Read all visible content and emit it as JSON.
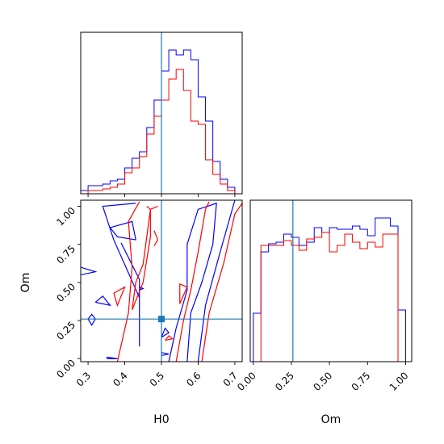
{
  "chart_data": {
    "type": "corner",
    "parameters": [
      "H0",
      "Om"
    ],
    "truth": {
      "H0": 0.5,
      "Om": 0.26
    },
    "colors": {
      "series_1": "#0000ff",
      "series_2": "#ff0000",
      "truth": "#1f77b4"
    },
    "panels": [
      {
        "id": "hist-H0",
        "type": "step-histogram",
        "xlim": [
          0.28,
          0.72
        ],
        "x_ticks": [
          0.3,
          0.4,
          0.5,
          0.6,
          0.7
        ],
        "ylim": [
          0,
          1.0
        ],
        "bin_edges": [
          0.28,
          0.3,
          0.32,
          0.34,
          0.36,
          0.38,
          0.4,
          0.42,
          0.44,
          0.46,
          0.48,
          0.5,
          0.52,
          0.54,
          0.56,
          0.58,
          0.6,
          0.62,
          0.64,
          0.66,
          0.68,
          0.7,
          0.72
        ],
        "series": [
          {
            "color": "blue",
            "values": [
              0.02,
              0.05,
              0.05,
              0.06,
              0.08,
              0.09,
              0.16,
              0.22,
              0.26,
              0.41,
              0.58,
              0.76,
              0.89,
              0.86,
              0.89,
              0.83,
              0.6,
              0.45,
              0.2,
              0.09,
              0.04,
              0.0
            ]
          },
          {
            "color": "red",
            "values": [
              0.0,
              0.02,
              0.02,
              0.03,
              0.04,
              0.06,
              0.13,
              0.16,
              0.23,
              0.37,
              0.48,
              0.58,
              0.71,
              0.77,
              0.64,
              0.45,
              0.43,
              0.21,
              0.12,
              0.06,
              0.02,
              0.0
            ]
          }
        ]
      },
      {
        "id": "contour-H0-Om",
        "type": "contour",
        "xlim": [
          0.28,
          0.72
        ],
        "ylim": [
          -0.02,
          1.04
        ],
        "x_ticks": [
          0.3,
          0.4,
          0.5,
          0.6,
          0.7
        ],
        "y_ticks": [
          0.0,
          0.25,
          0.5,
          0.75,
          1.0
        ],
        "y_tick_labels": [
          "0.00",
          "0.25",
          "0.50",
          "0.75",
          "1.00"
        ],
        "series": [
          {
            "color": "blue",
            "contours": [
              [
                [
                  0.39,
                  0.76
                ],
                [
                  0.44,
                  0.52
                ],
                [
                  0.44,
                  0.08
                ],
                [
                  0.44,
                  0.4
                ],
                [
                  0.37,
                  0.78
                ],
                [
                  0.34,
                  1.0
                ],
                [
                  0.43,
                  1.02
                ]
              ],
              [
                [
                  0.36,
                  0.86
                ],
                [
                  0.42,
                  0.9
                ],
                [
                  0.43,
                  0.78
                ],
                [
                  0.38,
                  0.8
                ],
                [
                  0.36,
                  0.86
                ]
              ],
              [
                [
                  0.28,
                  0.6
                ],
                [
                  0.32,
                  0.57
                ],
                [
                  0.28,
                  0.55
                ]
              ],
              [
                [
                  0.32,
                  0.37
                ],
                [
                  0.36,
                  0.35
                ],
                [
                  0.34,
                  0.41
                ],
                [
                  0.32,
                  0.37
                ]
              ],
              [
                [
                  0.3,
                  0.26
                ],
                [
                  0.31,
                  0.22
                ],
                [
                  0.32,
                  0.26
                ],
                [
                  0.31,
                  0.29
                ],
                [
                  0.3,
                  0.26
                ]
              ],
              [
                [
                  0.35,
                  0.01
                ],
                [
                  0.38,
                  0.0
                ],
                [
                  0.35,
                  0.0
                ]
              ],
              [
                [
                  0.52,
                  -0.02
                ],
                [
                  0.54,
                  0.2
                ],
                [
                  0.57,
                  0.45
                ],
                [
                  0.57,
                  0.75
                ],
                [
                  0.6,
                  0.98
                ],
                [
                  0.65,
                  1.02
                ],
                [
                  0.64,
                  0.75
                ],
                [
                  0.61,
                  0.5
                ],
                [
                  0.58,
                  0.3
                ],
                [
                  0.57,
                  -0.02
                ]
              ],
              [
                [
                  0.6,
                  -0.02
                ],
                [
                  0.62,
                  0.35
                ],
                [
                  0.66,
                  0.7
                ],
                [
                  0.7,
                  1.04
                ]
              ],
              [
                [
                  0.5,
                  0.14
                ],
                [
                  0.52,
                  0.17
                ],
                [
                  0.51,
                  0.2
                ],
                [
                  0.5,
                  0.14
                ]
              ],
              [
                [
                  0.44,
                  0.47
                ],
                [
                  0.45,
                  0.46
                ],
                [
                  0.44,
                  0.45
                ]
              ],
              [
                [
                  0.5,
                  0.02
                ],
                [
                  0.52,
                  0.03
                ],
                [
                  0.5,
                  0.04
                ]
              ]
            ]
          },
          {
            "color": "red",
            "contours": [
              [
                [
                  0.38,
                  -0.02
                ],
                [
                  0.41,
                  0.3
                ],
                [
                  0.42,
                  0.6
                ],
                [
                  0.41,
                  0.9
                ],
                [
                  0.44,
                  1.03
                ]
              ],
              [
                [
                  0.42,
                  0.32
                ],
                [
                  0.43,
                  0.5
                ],
                [
                  0.45,
                  0.62
                ],
                [
                  0.47,
                  0.98
                ],
                [
                  0.47,
                  0.8
                ],
                [
                  0.45,
                  0.5
                ],
                [
                  0.42,
                  0.32
                ]
              ],
              [
                [
                  0.54,
                  -0.02
                ],
                [
                  0.56,
                  0.25
                ],
                [
                  0.58,
                  0.45
                ],
                [
                  0.6,
                  0.7
                ],
                [
                  0.62,
                  0.98
                ],
                [
                  0.63,
                  1.03
                ]
              ],
              [
                [
                  0.61,
                  -0.02
                ],
                [
                  0.63,
                  0.3
                ],
                [
                  0.67,
                  0.63
                ],
                [
                  0.7,
                  0.95
                ],
                [
                  0.72,
                  1.02
                ]
              ],
              [
                [
                  0.37,
                  0.43
                ],
                [
                  0.4,
                  0.47
                ],
                [
                  0.38,
                  0.35
                ],
                [
                  0.37,
                  0.43
                ]
              ],
              [
                [
                  0.55,
                  0.36
                ],
                [
                  0.57,
                  0.47
                ],
                [
                  0.55,
                  0.49
                ],
                [
                  0.55,
                  0.36
                ]
              ],
              [
                [
                  0.48,
                  0.84
                ],
                [
                  0.49,
                  0.78
                ],
                [
                  0.48,
                  0.74
                ]
              ],
              [
                [
                  0.51,
                  0.12
                ],
                [
                  0.53,
                  0.13
                ],
                [
                  0.52,
                  0.15
                ],
                [
                  0.51,
                  0.12
                ]
              ],
              [
                [
                  0.46,
                  1.0
                ],
                [
                  0.47,
                  0.98
                ],
                [
                  0.49,
                  1.0
                ]
              ]
            ]
          }
        ]
      },
      {
        "id": "hist-Om",
        "type": "step-histogram",
        "xlim": [
          -0.02,
          1.04
        ],
        "x_ticks": [
          0.0,
          0.25,
          0.5,
          0.75,
          1.0
        ],
        "x_tick_labels": [
          "0.00",
          "0.25",
          "0.50",
          "0.75",
          "1.00"
        ],
        "ylim": [
          0,
          1.0
        ],
        "bin_edges": [
          0.0,
          0.05,
          0.1,
          0.15,
          0.2,
          0.25,
          0.3,
          0.35,
          0.4,
          0.45,
          0.5,
          0.55,
          0.6,
          0.65,
          0.7,
          0.75,
          0.8,
          0.85,
          0.9,
          0.95,
          1.0
        ],
        "series": [
          {
            "color": "blue",
            "values": [
              0.3,
              0.68,
              0.73,
              0.74,
              0.79,
              0.77,
              0.72,
              0.74,
              0.83,
              0.8,
              0.83,
              0.82,
              0.82,
              0.84,
              0.82,
              0.78,
              0.89,
              0.89,
              0.84,
              0.32
            ]
          },
          {
            "color": "red",
            "values": [
              0.0,
              0.72,
              0.72,
              0.72,
              0.75,
              0.72,
              0.69,
              0.76,
              0.77,
              0.8,
              0.68,
              0.72,
              0.79,
              0.74,
              0.7,
              0.74,
              0.71,
              0.79,
              0.79,
              0.0
            ]
          }
        ]
      }
    ],
    "labels": {
      "xlabel_left": "H0",
      "ylabel_left": "Om",
      "xlabel_right": "Om"
    }
  }
}
